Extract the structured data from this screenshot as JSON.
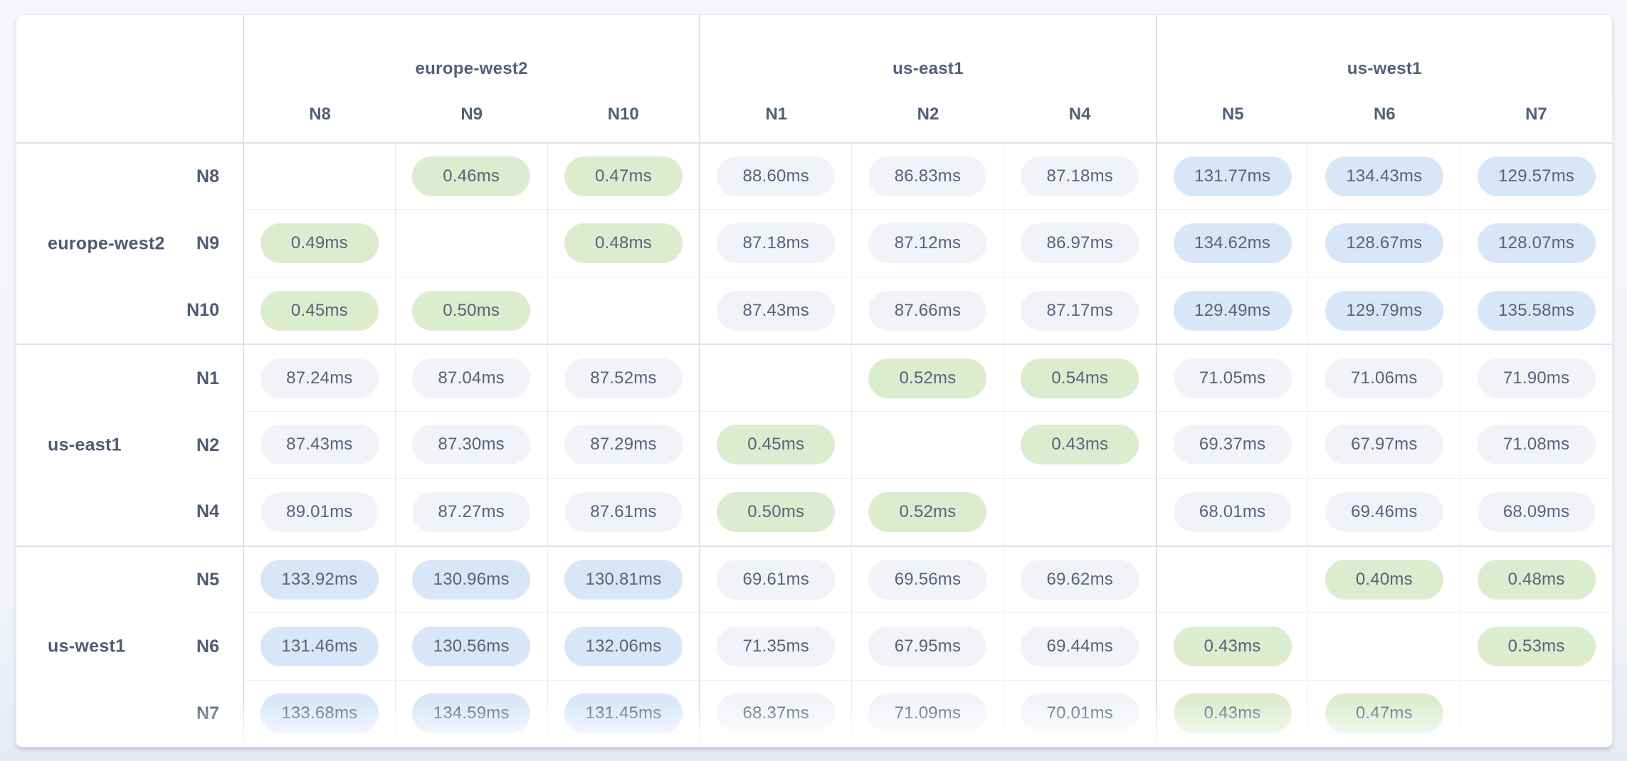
{
  "page": {
    "background_top": "#f5f6fa",
    "background_bottom": "#e7eaf2"
  },
  "matrix": {
    "unit": "ms",
    "colors": {
      "intra_region_pill": "#dcecce",
      "cross_region_near_pill": "#f1f3f8",
      "cross_region_far_pill": "#d8e7f8",
      "value_text": "#57637b",
      "label_text": "#4d5b75",
      "group_border": "#dde1eb",
      "inner_border": "#e9ecf3"
    },
    "column_groups": [
      {
        "region": "europe-west2",
        "nodes": [
          "N8",
          "N9",
          "N10"
        ]
      },
      {
        "region": "us-east1",
        "nodes": [
          "N1",
          "N2",
          "N4"
        ]
      },
      {
        "region": "us-west1",
        "nodes": [
          "N5",
          "N6",
          "N7"
        ]
      }
    ],
    "row_groups": [
      {
        "region": "europe-west2",
        "rows": [
          {
            "node": "N8",
            "values": [
              "",
              "0.46ms",
              "0.47ms",
              "88.60ms",
              "86.83ms",
              "87.18ms",
              "131.77ms",
              "134.43ms",
              "129.57ms"
            ]
          },
          {
            "node": "N9",
            "values": [
              "0.49ms",
              "",
              "0.48ms",
              "87.18ms",
              "87.12ms",
              "86.97ms",
              "134.62ms",
              "128.67ms",
              "128.07ms"
            ]
          },
          {
            "node": "N10",
            "values": [
              "0.45ms",
              "0.50ms",
              "",
              "87.43ms",
              "87.66ms",
              "87.17ms",
              "129.49ms",
              "129.79ms",
              "135.58ms"
            ]
          }
        ]
      },
      {
        "region": "us-east1",
        "rows": [
          {
            "node": "N1",
            "values": [
              "87.24ms",
              "87.04ms",
              "87.52ms",
              "",
              "0.52ms",
              "0.54ms",
              "71.05ms",
              "71.06ms",
              "71.90ms"
            ]
          },
          {
            "node": "N2",
            "values": [
              "87.43ms",
              "87.30ms",
              "87.29ms",
              "0.45ms",
              "",
              "0.43ms",
              "69.37ms",
              "67.97ms",
              "71.08ms"
            ]
          },
          {
            "node": "N4",
            "values": [
              "89.01ms",
              "87.27ms",
              "87.61ms",
              "0.50ms",
              "0.52ms",
              "",
              "68.01ms",
              "69.46ms",
              "68.09ms"
            ]
          }
        ]
      },
      {
        "region": "us-west1",
        "rows": [
          {
            "node": "N5",
            "values": [
              "133.92ms",
              "130.96ms",
              "130.81ms",
              "69.61ms",
              "69.56ms",
              "69.62ms",
              "",
              "0.40ms",
              "0.48ms"
            ]
          },
          {
            "node": "N6",
            "values": [
              "131.46ms",
              "130.56ms",
              "132.06ms",
              "71.35ms",
              "67.95ms",
              "69.44ms",
              "0.43ms",
              "",
              "0.53ms"
            ]
          },
          {
            "node": "N7",
            "values": [
              "133.68ms",
              "134.59ms",
              "131.45ms",
              "68.37ms",
              "71.09ms",
              "70.01ms",
              "0.43ms",
              "0.47ms",
              ""
            ]
          }
        ]
      }
    ]
  }
}
